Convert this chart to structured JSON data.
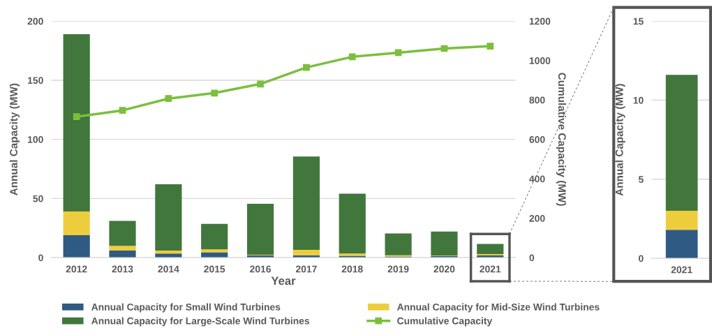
{
  "chart_data": [
    {
      "type": "bar",
      "stacked": true,
      "xlabel": "Year",
      "ylabel": "Annual Capacity (MW)",
      "y2label": "Cumulative Capacity (MW)",
      "categories": [
        "2012",
        "2013",
        "2014",
        "2015",
        "2016",
        "2017",
        "2018",
        "2019",
        "2020",
        "2021"
      ],
      "series": [
        {
          "name": "Annual Capacity for Small Wind Turbines",
          "color": "#2e5a84",
          "values": [
            19,
            6,
            3.5,
            4.5,
            2,
            2,
            1.5,
            1,
            1.5,
            1.8
          ]
        },
        {
          "name": "Annual Capacity for Mid-Size Wind Turbines",
          "color": "#eecd3c",
          "values": [
            20,
            4,
            2.5,
            2.5,
            0.5,
            4.5,
            2,
            1,
            0.3,
            1.2
          ]
        },
        {
          "name": "Annual Capacity for Large-Scale Wind Turbines",
          "color": "#41773c",
          "values": [
            150,
            21,
            56,
            21.5,
            43,
            79,
            50.5,
            18.5,
            20.2,
            8.6
          ]
        },
        {
          "name": "Cumulative Capacity",
          "type": "line",
          "axis": "y2",
          "color": "#7bbf3c",
          "marker": "square",
          "values": [
            715,
            747,
            807,
            835,
            881,
            965,
            1019,
            1040,
            1061,
            1073
          ]
        }
      ],
      "ylim": [
        0,
        200
      ],
      "yticks": [
        0,
        50,
        100,
        150,
        200
      ],
      "y2lim": [
        0,
        1200
      ],
      "y2ticks": [
        0,
        200,
        400,
        600,
        800,
        1000,
        1200
      ],
      "grid": "y",
      "legend": "bottom"
    },
    {
      "type": "bar",
      "stacked": true,
      "ylabel": "Annual Capacity (MW)",
      "categories": [
        "2021"
      ],
      "series": [
        {
          "color": "#2e5a84",
          "values": [
            1.8
          ]
        },
        {
          "color": "#eecd3c",
          "values": [
            1.2
          ]
        },
        {
          "color": "#41773c",
          "values": [
            8.6
          ]
        }
      ],
      "ylim": [
        0,
        15
      ],
      "yticks": [
        0,
        5,
        10,
        15
      ],
      "grid": "y"
    }
  ]
}
